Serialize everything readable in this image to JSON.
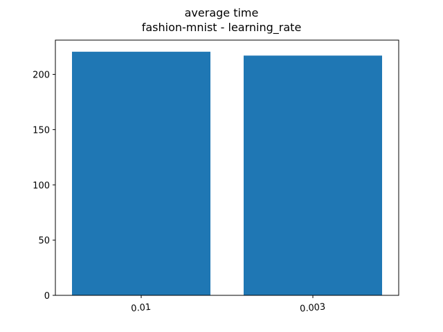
{
  "chart_data": {
    "type": "bar",
    "title": "average time",
    "subtitle": "fashion-mnist - learning_rate",
    "categories": [
      "0.01",
      "0.003"
    ],
    "values": [
      220.5,
      217.0
    ],
    "xlabel": "",
    "ylabel": "",
    "ylim": [
      0,
      231
    ],
    "yticks": [
      0,
      50,
      100,
      150,
      200
    ],
    "bar_color": "#1f77b4",
    "grid": false,
    "legend": false
  }
}
